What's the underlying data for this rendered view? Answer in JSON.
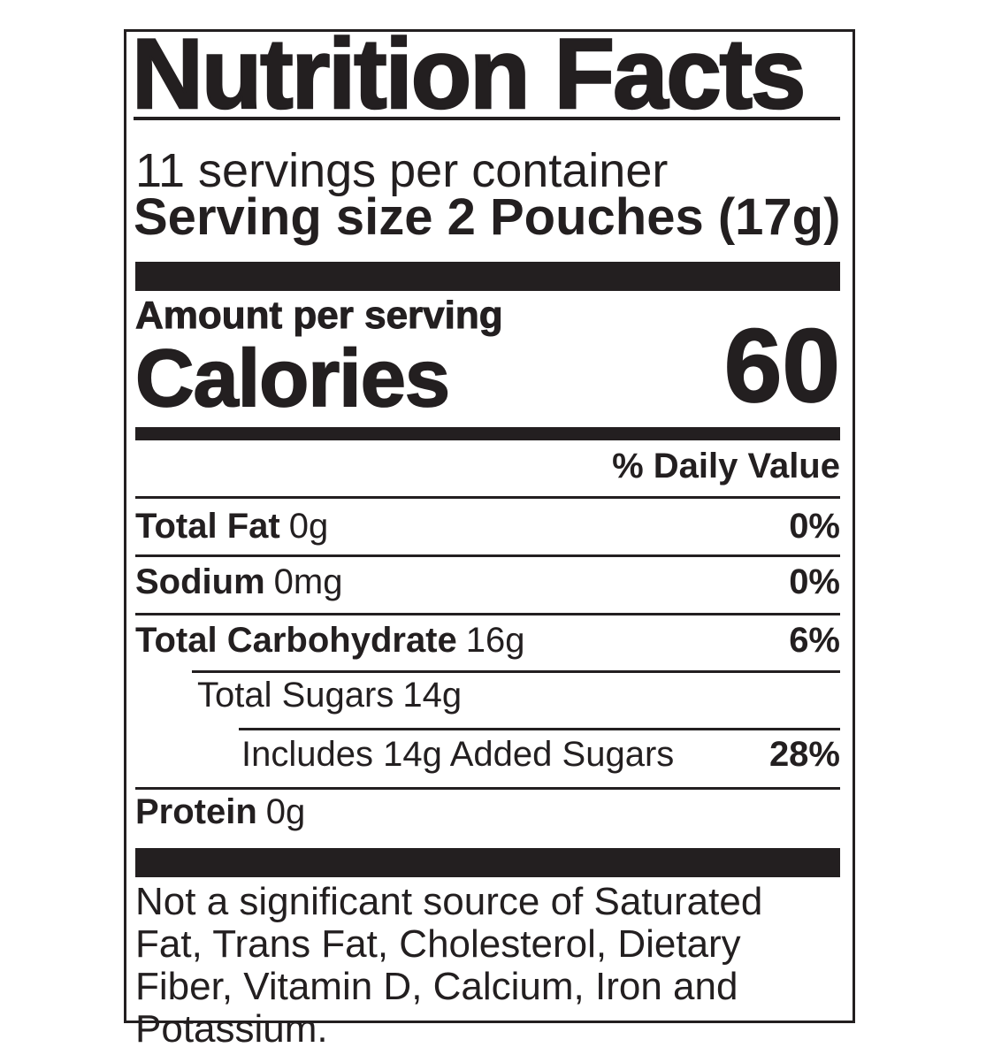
{
  "label": {
    "title": "Nutrition Facts",
    "servings_per_container": "11 servings per container",
    "serving_size_label": "Serving size",
    "serving_size_value": "2 Pouches (17g)",
    "amount_per_serving": "Amount per serving",
    "calories_label": "Calories",
    "calories_value": "60",
    "daily_value_header": "% Daily Value",
    "rows": [
      {
        "name": "Total Fat",
        "amount": "0g",
        "dv": "0%"
      },
      {
        "name": "Sodium",
        "amount": "0mg",
        "dv": "0%"
      },
      {
        "name": "Total Carbohydrate",
        "amount": "16g",
        "dv": "6%"
      },
      {
        "name": "Total Sugars",
        "amount": "14g",
        "dv": ""
      },
      {
        "name": "Includes 14g Added Sugars",
        "amount": "",
        "dv": "28%"
      },
      {
        "name": "Protein",
        "amount": "0g",
        "dv": ""
      }
    ],
    "footnote": "Not a significant source of Saturated Fat, Trans Fat, Cholesterol, Dietary Fiber, Vitamin D, Calcium, Iron and Potassium.",
    "colors": {
      "ink": "#231f20",
      "background": "#ffffff"
    }
  }
}
